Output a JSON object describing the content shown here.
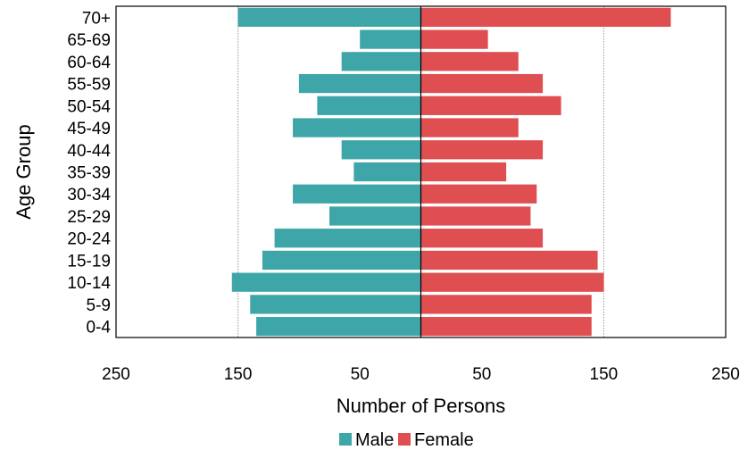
{
  "chart_data": {
    "type": "bar",
    "orientation": "horizontal",
    "layout": "population-pyramid",
    "ylabel": "Age Group",
    "xlabel": "Number of Persons",
    "categories": [
      "70+",
      "65-69",
      "60-64",
      "55-59",
      "50-54",
      "45-49",
      "40-44",
      "35-39",
      "30-34",
      "25-29",
      "20-24",
      "15-19",
      "10-14",
      "5-9",
      "0-4"
    ],
    "series": [
      {
        "name": "Male",
        "color": "#3ea6a8",
        "side": "left",
        "values": [
          150,
          50,
          65,
          100,
          85,
          105,
          65,
          55,
          105,
          75,
          120,
          130,
          155,
          140,
          135
        ]
      },
      {
        "name": "Female",
        "color": "#df4e50",
        "side": "right",
        "values": [
          205,
          55,
          80,
          100,
          115,
          80,
          100,
          70,
          95,
          90,
          100,
          145,
          150,
          140,
          140
        ]
      }
    ],
    "xlim": [
      -250,
      250
    ],
    "xticks": [
      {
        "value": -250,
        "label": "250"
      },
      {
        "value": -150,
        "label": "150"
      },
      {
        "value": -50,
        "label": "50"
      },
      {
        "value": 50,
        "label": "50"
      },
      {
        "value": 150,
        "label": "150"
      },
      {
        "value": 250,
        "label": "250"
      }
    ],
    "grid_values": [
      -150,
      150
    ],
    "grid": true,
    "legend": {
      "position": "bottom-center"
    }
  }
}
